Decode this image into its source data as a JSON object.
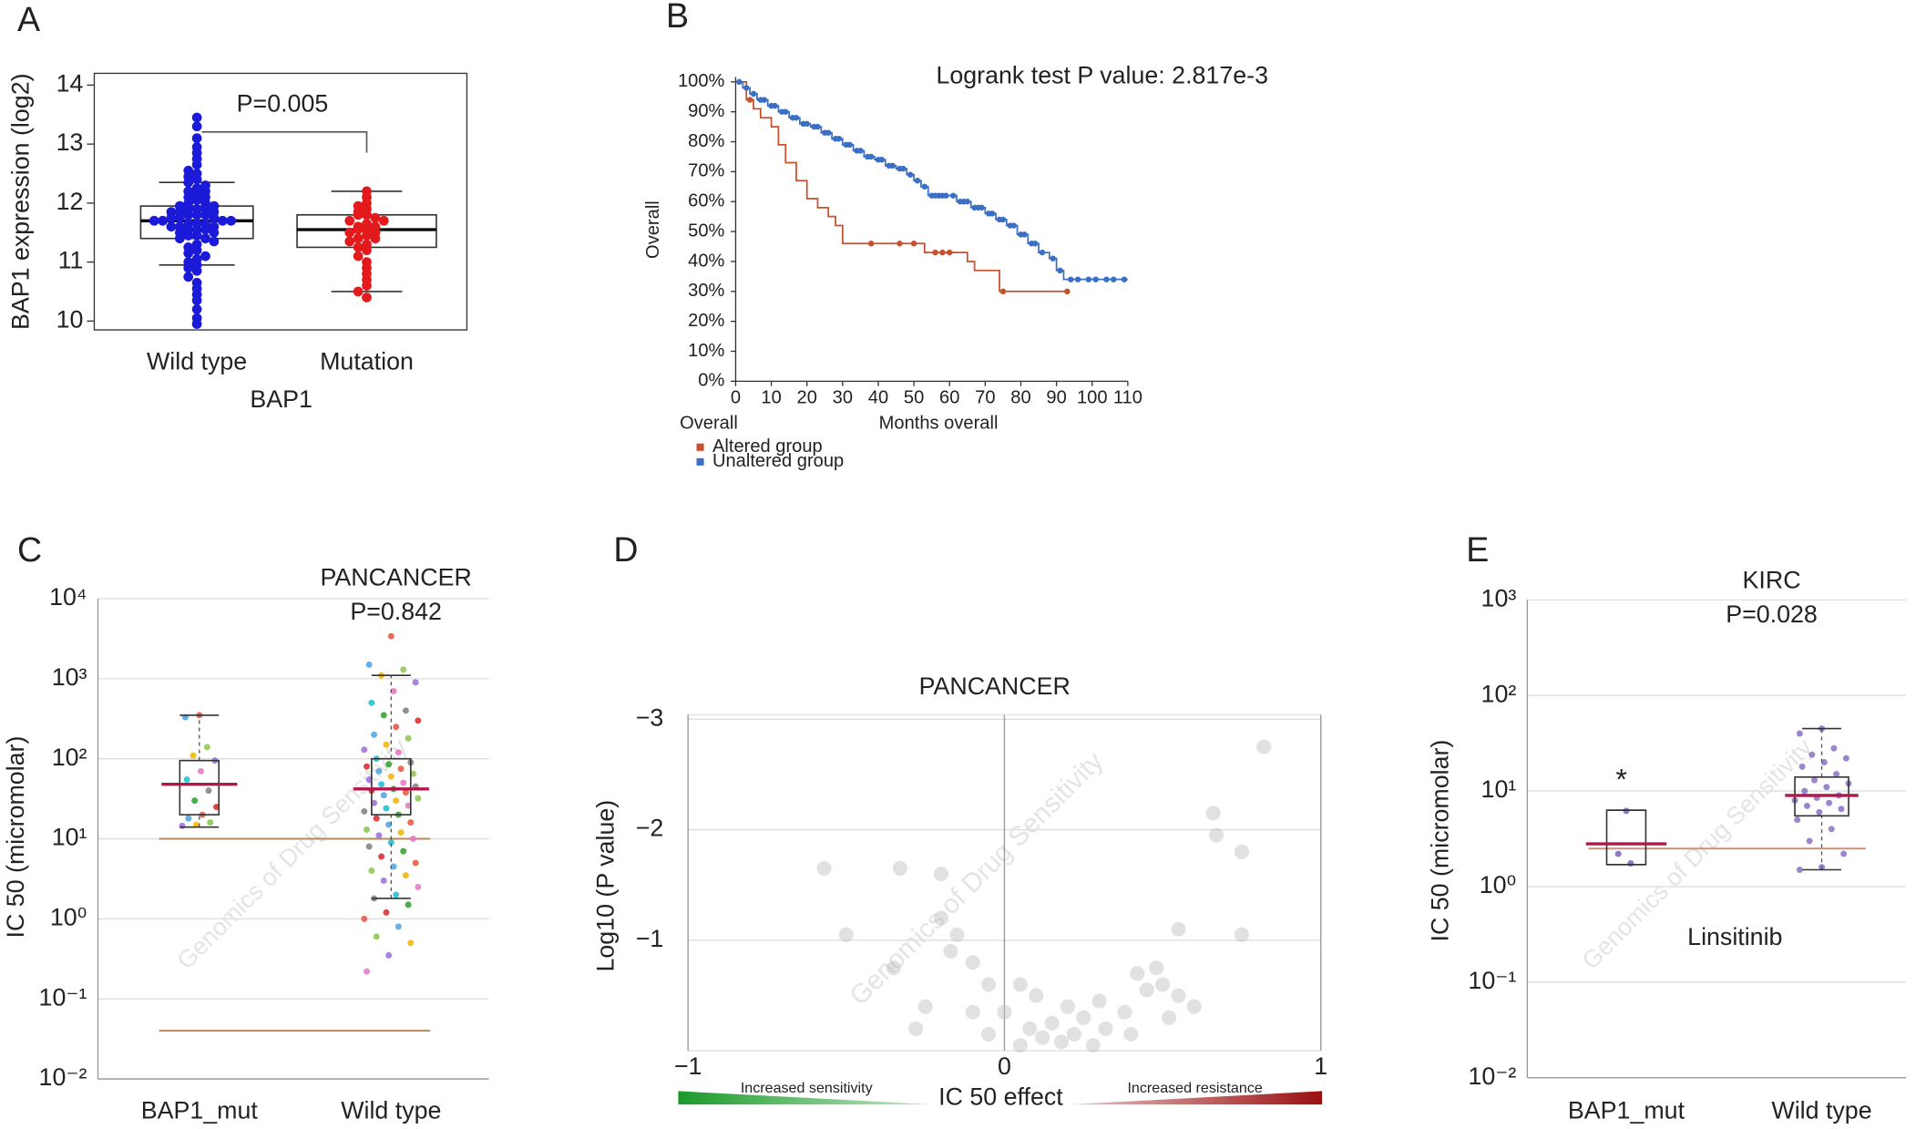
{
  "chart_data": [
    {
      "type": "box",
      "label": "A",
      "annotation": "P=0.005",
      "xlabel": "BAP1",
      "ylabel": "BAP1 expression (log2)",
      "categories": [
        "Wild type",
        "Mutation"
      ],
      "colors": [
        "#1a1ad8",
        "#e31a1c"
      ],
      "median_color": "#000000",
      "ylim": [
        9.85,
        14.2
      ],
      "yticks": [
        10,
        11,
        12,
        13,
        14
      ],
      "boxes": [
        {
          "whisker_low": 10.95,
          "q1": 11.4,
          "median": 11.7,
          "q3": 11.95,
          "whisker_high": 12.35
        },
        {
          "whisker_low": 10.5,
          "q1": 11.25,
          "median": 11.55,
          "q3": 11.8,
          "whisker_high": 12.2
        }
      ],
      "points": [
        [
          13.45,
          13.3,
          13.1,
          12.95,
          12.85,
          12.75,
          12.65,
          12.55,
          12.5,
          12.45,
          12.4,
          12.35,
          12.3,
          12.25,
          12.2,
          12.2,
          12.15,
          12.1,
          12.1,
          12.05,
          12.0,
          12.0,
          11.95,
          11.95,
          11.9,
          11.9,
          11.9,
          11.85,
          11.85,
          11.85,
          11.8,
          11.8,
          11.8,
          11.75,
          11.75,
          11.75,
          11.7,
          11.7,
          11.7,
          11.7,
          11.65,
          11.65,
          11.65,
          11.6,
          11.6,
          11.6,
          11.55,
          11.55,
          11.55,
          11.5,
          11.5,
          11.45,
          11.45,
          11.4,
          11.4,
          11.35,
          11.3,
          11.25,
          11.2,
          11.15,
          11.1,
          11.05,
          11.0,
          10.95,
          10.9,
          10.85,
          10.75,
          10.65,
          10.55,
          10.45,
          10.35,
          10.2,
          10.05,
          9.95
        ],
        [
          12.2,
          12.1,
          12.0,
          11.95,
          11.9,
          11.85,
          11.8,
          11.8,
          11.75,
          11.7,
          11.7,
          11.65,
          11.6,
          11.6,
          11.55,
          11.55,
          11.5,
          11.5,
          11.45,
          11.4,
          11.4,
          11.35,
          11.3,
          11.25,
          11.2,
          11.1,
          11.0,
          10.9,
          10.8,
          10.7,
          10.6,
          10.5,
          10.4
        ]
      ]
    },
    {
      "type": "step",
      "label": "B",
      "title": "Logrank test P value: 2.817e-3",
      "ylabel": "Overall",
      "xlabel": "Months overall",
      "x_caption": "Overall",
      "xlim": [
        0,
        110
      ],
      "xticks": [
        0,
        10,
        20,
        30,
        40,
        50,
        60,
        70,
        80,
        90,
        100,
        110
      ],
      "ylim": [
        0,
        100
      ],
      "yticks": [
        {
          "value": 0,
          "label": "0%"
        },
        {
          "value": 10,
          "label": "10%"
        },
        {
          "value": 20,
          "label": "20%"
        },
        {
          "value": 30,
          "label": "30%"
        },
        {
          "value": 40,
          "label": "40%"
        },
        {
          "value": 50,
          "label": "50%"
        },
        {
          "value": 60,
          "label": "60%"
        },
        {
          "value": 70,
          "label": "70%"
        },
        {
          "value": 80,
          "label": "80%"
        },
        {
          "value": 90,
          "label": "90%"
        },
        {
          "value": 100,
          "label": "100%"
        }
      ],
      "series": [
        {
          "name": "Altered group",
          "color": "#c8502a",
          "x": [
            0,
            3,
            5,
            7,
            10,
            12,
            14,
            17,
            20,
            23,
            26,
            28,
            30,
            53,
            65,
            67,
            74,
            93
          ],
          "values": [
            100,
            94,
            91,
            88,
            85,
            79,
            73,
            67,
            61,
            58,
            55,
            52,
            46,
            43,
            40,
            37,
            30,
            30
          ],
          "censored": [
            4,
            38,
            46,
            50,
            56,
            58,
            60,
            75,
            93
          ]
        },
        {
          "name": "Unaltered group",
          "color": "#3a6fc4",
          "x": [
            0,
            2,
            4,
            6,
            9,
            12,
            15,
            18,
            21,
            24,
            27,
            30,
            33,
            36,
            39,
            42,
            45,
            48,
            50,
            52,
            54,
            62,
            66,
            70,
            73,
            76,
            79,
            82,
            85,
            88,
            90,
            92,
            110
          ],
          "values": [
            100,
            98,
            96,
            94,
            92,
            90,
            88,
            86,
            85,
            83,
            81,
            79,
            77,
            75,
            74,
            72,
            71,
            69,
            67,
            65,
            62,
            60,
            58,
            56,
            54,
            52,
            49,
            46,
            43,
            41,
            37,
            34,
            34
          ],
          "censored": [
            1,
            3,
            5,
            7,
            8,
            10,
            11,
            13,
            14,
            16,
            17,
            19,
            20,
            22,
            23,
            25,
            26,
            28,
            29,
            31,
            32,
            34,
            35,
            37,
            38,
            40,
            41,
            43,
            44,
            46,
            47,
            49,
            51,
            53,
            55,
            56,
            57,
            58,
            59,
            61,
            63,
            64,
            65,
            67,
            68,
            69,
            71,
            72,
            74,
            75,
            77,
            78,
            80,
            81,
            83,
            84,
            86,
            89,
            91,
            94,
            96,
            99,
            101,
            104,
            106,
            109
          ]
        }
      ]
    },
    {
      "type": "box",
      "label": "C",
      "log_scale": true,
      "title": "PANCANCER",
      "annotation": "P=0.842",
      "ylabel": "IC 50 (micromolar)",
      "watermark": "Genomics of Drug Sensitivity",
      "categories": [
        "BAP1_mut",
        "Wild type"
      ],
      "grid": true,
      "ylim": [
        0.01,
        10000
      ],
      "yticks": [
        {
          "value": 0.01,
          "label": "10⁻²"
        },
        {
          "value": 0.1,
          "label": "10⁻¹"
        },
        {
          "value": 1,
          "label": "10⁰"
        },
        {
          "value": 10,
          "label": "10¹"
        },
        {
          "value": 100,
          "label": "10²"
        },
        {
          "value": 1000,
          "label": "10³"
        },
        {
          "value": 10000,
          "label": "10⁴"
        }
      ],
      "reference_lines": [
        10,
        0.04
      ],
      "reference_color": "#b5895a",
      "median_color": "#b0174a",
      "palette": [
        "#e6553a",
        "#4aa3df",
        "#8bc34a",
        "#f0b400",
        "#9c6ade",
        "#e377c2",
        "#17becf",
        "#7f7f7f",
        "#2ca02c",
        "#d62728"
      ],
      "boxes": [
        {
          "whisker_low": 14,
          "q1": 20,
          "median": 48,
          "q3": 95,
          "whisker_high": 350
        },
        {
          "whisker_low": 1.8,
          "q1": 20,
          "median": 42,
          "q3": 100,
          "whisker_high": 1100
        }
      ],
      "points": [
        [
          350,
          330,
          140,
          110,
          95,
          70,
          55,
          40,
          30,
          25,
          20,
          18,
          16,
          15,
          14.5
        ],
        [
          3400,
          1500,
          1300,
          1100,
          900,
          700,
          500,
          400,
          350,
          300,
          250,
          200,
          180,
          150,
          130,
          120,
          100,
          90,
          85,
          80,
          75,
          70,
          65,
          60,
          55,
          50,
          48,
          45,
          42,
          40,
          38,
          35,
          32,
          30,
          28,
          26,
          24,
          22,
          20,
          18,
          16,
          15,
          13,
          12,
          11,
          10,
          9,
          8,
          7,
          6,
          5,
          4.5,
          4,
          3.5,
          3,
          2.5,
          2,
          1.8,
          1.5,
          1.2,
          1,
          0.8,
          0.6,
          0.5,
          0.35,
          0.22
        ]
      ]
    },
    {
      "type": "scatter",
      "label": "D",
      "title": "PANCANCER",
      "xlabel": "IC 50 effect",
      "ylabel": "Log10 (P value)",
      "left_caption": "Increased sensitivity",
      "right_caption": "Increased resistance",
      "watermark": "Genomics of Drug Sensitivity",
      "xlim": [
        -1,
        1
      ],
      "xticks": [
        {
          "value": -1,
          "label": "−1"
        },
        0,
        1
      ],
      "ylim": [
        0,
        -3.04
      ],
      "yticks": [
        {
          "value": -3,
          "label": "−3"
        },
        {
          "value": -2,
          "label": "−2"
        },
        {
          "value": -1,
          "label": "−1"
        }
      ],
      "grid": true,
      "color": "#bdbdbd",
      "x": [
        0.82,
        0.66,
        0.67,
        0.75,
        -0.57,
        -0.33,
        -0.2,
        -0.5,
        -0.2,
        -0.15,
        0.55,
        0.75,
        -0.17,
        -0.35,
        -0.1,
        -0.05,
        0.05,
        0.1,
        0.2,
        0.3,
        0.42,
        0.45,
        0.5,
        0.48,
        0.55,
        0.38,
        0.25,
        0.15,
        0.08,
        0.0,
        -0.1,
        -0.25,
        -0.28,
        0.12,
        0.22,
        0.32,
        0.4,
        0.6,
        0.52,
        -0.05,
        0.18,
        0.28,
        0.05
      ],
      "values": [
        -2.75,
        -2.15,
        -1.95,
        -1.8,
        -1.65,
        -1.65,
        -1.6,
        -1.05,
        -1.2,
        -1.05,
        -1.1,
        -1.05,
        -0.9,
        -0.75,
        -0.8,
        -0.6,
        -0.6,
        -0.5,
        -0.4,
        -0.45,
        -0.7,
        -0.55,
        -0.6,
        -0.75,
        -0.5,
        -0.35,
        -0.3,
        -0.25,
        -0.2,
        -0.35,
        -0.35,
        -0.4,
        -0.2,
        -0.12,
        -0.15,
        -0.2,
        -0.15,
        -0.4,
        -0.3,
        -0.15,
        -0.08,
        -0.05,
        -0.05
      ]
    },
    {
      "type": "box",
      "label": "E",
      "log_scale": true,
      "title": "KIRC",
      "annotation": "P=0.028",
      "star": "*",
      "drug": "Linsitinib",
      "ylabel": "IC 50 (micromolar)",
      "watermark": "Genomics of Drug Sensitivity",
      "categories": [
        "BAP1_mut",
        "Wild type"
      ],
      "grid": true,
      "colors": [
        "#7a62b8",
        "#8a70c4"
      ],
      "ylim": [
        0.01,
        1000
      ],
      "yticks": [
        {
          "value": 0.01,
          "label": "10⁻²"
        },
        {
          "value": 0.1,
          "label": "10⁻¹"
        },
        {
          "value": 1,
          "label": "10⁰"
        },
        {
          "value": 10,
          "label": "10¹"
        },
        {
          "value": 100,
          "label": "10²"
        },
        {
          "value": 1000,
          "label": "10³"
        }
      ],
      "reference_lines": [
        2.5
      ],
      "reference_color": "#c9917a",
      "median_color": "#b0174a",
      "boxes": [
        {
          "whisker_low": 1.7,
          "q1": 1.7,
          "median": 2.8,
          "q3": 6.3,
          "whisker_high": 6.3
        },
        {
          "whisker_low": 1.5,
          "q1": 5.5,
          "median": 9,
          "q3": 14,
          "whisker_high": 45
        }
      ],
      "points": [
        [
          6.2,
          2.2,
          1.75
        ],
        [
          45,
          40,
          28,
          24,
          22,
          20,
          18,
          15,
          13,
          12,
          11,
          10,
          9,
          8.5,
          8,
          7.5,
          7,
          6.5,
          6,
          5,
          4,
          3,
          2.2,
          1.6,
          1.5
        ]
      ]
    }
  ]
}
